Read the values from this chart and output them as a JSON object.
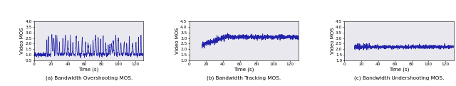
{
  "fig_width": 6.4,
  "fig_height": 1.21,
  "dpi": 100,
  "background_color": "#e8e8ee",
  "line_color": "#2222aa",
  "line_width": 0.5,
  "subplots": [
    {
      "title": "(a) Bandwidth Overshooting MOS.",
      "ylabel": "Video MOS",
      "xlabel": "Time (s)",
      "xlim": [
        0,
        130
      ],
      "ylim": [
        0.5,
        4.0
      ],
      "yticks": [
        0.5,
        1.0,
        1.5,
        2.0,
        2.5,
        3.0,
        3.5,
        4.0
      ],
      "ytick_labels": [
        "0.5",
        "1.0",
        "1.5",
        "2.0",
        "2.5",
        "3.0",
        "3.5",
        "4.0"
      ],
      "xticks": [
        0,
        20,
        40,
        60,
        80,
        100,
        120
      ],
      "pattern": "overshooting"
    },
    {
      "title": "(b) Bandwidth Tracking MOS.",
      "ylabel": "Video MOS",
      "xlabel": "Time (s)",
      "xlim": [
        0,
        130
      ],
      "ylim": [
        1.0,
        4.5
      ],
      "yticks": [
        1.0,
        1.5,
        2.0,
        2.5,
        3.0,
        3.5,
        4.0,
        4.5
      ],
      "ytick_labels": [
        "1.0",
        "1.5",
        "2.0",
        "2.5",
        "3.0",
        "3.5",
        "4.0",
        "4.5"
      ],
      "xticks": [
        0,
        20,
        40,
        60,
        80,
        100,
        120
      ],
      "pattern": "tracking"
    },
    {
      "title": "(c) Bandwidth Undershooting MOS.",
      "ylabel": "Video MOS",
      "xlabel": "Time (s)",
      "xlim": [
        0,
        130
      ],
      "ylim": [
        1.0,
        4.5
      ],
      "yticks": [
        1.0,
        1.5,
        2.0,
        2.5,
        3.0,
        3.5,
        4.0,
        4.5
      ],
      "ytick_labels": [
        "1.0",
        "1.5",
        "2.0",
        "2.5",
        "3.0",
        "3.5",
        "4.0",
        "4.5"
      ],
      "xticks": [
        0,
        20,
        40,
        60,
        80,
        100,
        120
      ],
      "pattern": "undershooting"
    }
  ]
}
